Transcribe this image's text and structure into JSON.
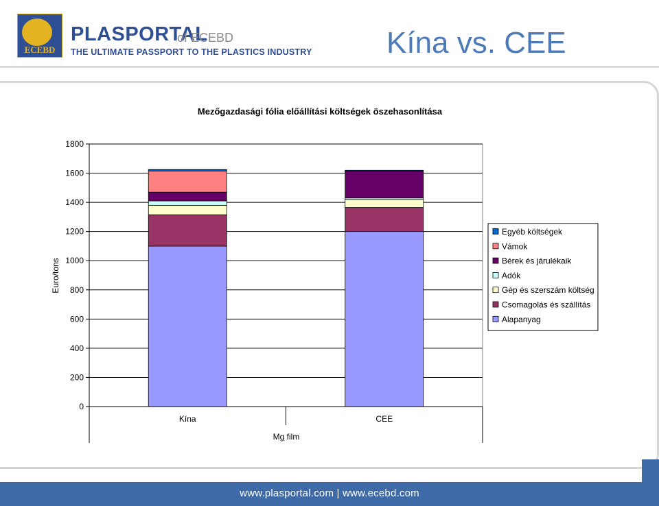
{
  "header": {
    "logo_text": "ECEBD",
    "brand_name": "PLASPORTAL",
    "brand_of": "of ECEBD",
    "tagline": "THE ULTIMATE PASSPORT TO THE PLASTICS INDUSTRY",
    "slide_title": "Kína vs. CEE"
  },
  "footer": {
    "text": "www.plasportal.com  |  www.ecebd.com"
  },
  "colors": {
    "brand_blue": "#2e4f94",
    "title_blue": "#4f7ab8",
    "footer_blue": "#3f6aa8"
  },
  "chart_data": {
    "type": "bar",
    "stacked": true,
    "title": "Mezőgazdasági fólia előállítási költségek öszehasonlítása",
    "xlabel": "Mg film",
    "ylabel": "Euro/tons",
    "ylim": [
      0,
      1800
    ],
    "yticks": [
      0,
      200,
      400,
      600,
      800,
      1000,
      1200,
      1400,
      1600,
      1800
    ],
    "categories": [
      "Kína",
      "CEE"
    ],
    "legend_position": "right",
    "series": [
      {
        "name": "Alapanyag",
        "color": "#9999ff",
        "values": [
          1100,
          1200
        ]
      },
      {
        "name": "Csomagolás és szállítás",
        "color": "#993366",
        "values": [
          215,
          165
        ]
      },
      {
        "name": "Gép és szerszám költség",
        "color": "#ffffcc",
        "values": [
          65,
          55
        ]
      },
      {
        "name": "Adók",
        "color": "#ccffff",
        "values": [
          30,
          10
        ]
      },
      {
        "name": "Bérek és járulékaik",
        "color": "#660066",
        "values": [
          60,
          185
        ]
      },
      {
        "name": "Vámok",
        "color": "#ff8080",
        "values": [
          145,
          0
        ]
      },
      {
        "name": "Egyéb költségek",
        "color": "#0066cc",
        "values": [
          10,
          5
        ]
      }
    ]
  }
}
